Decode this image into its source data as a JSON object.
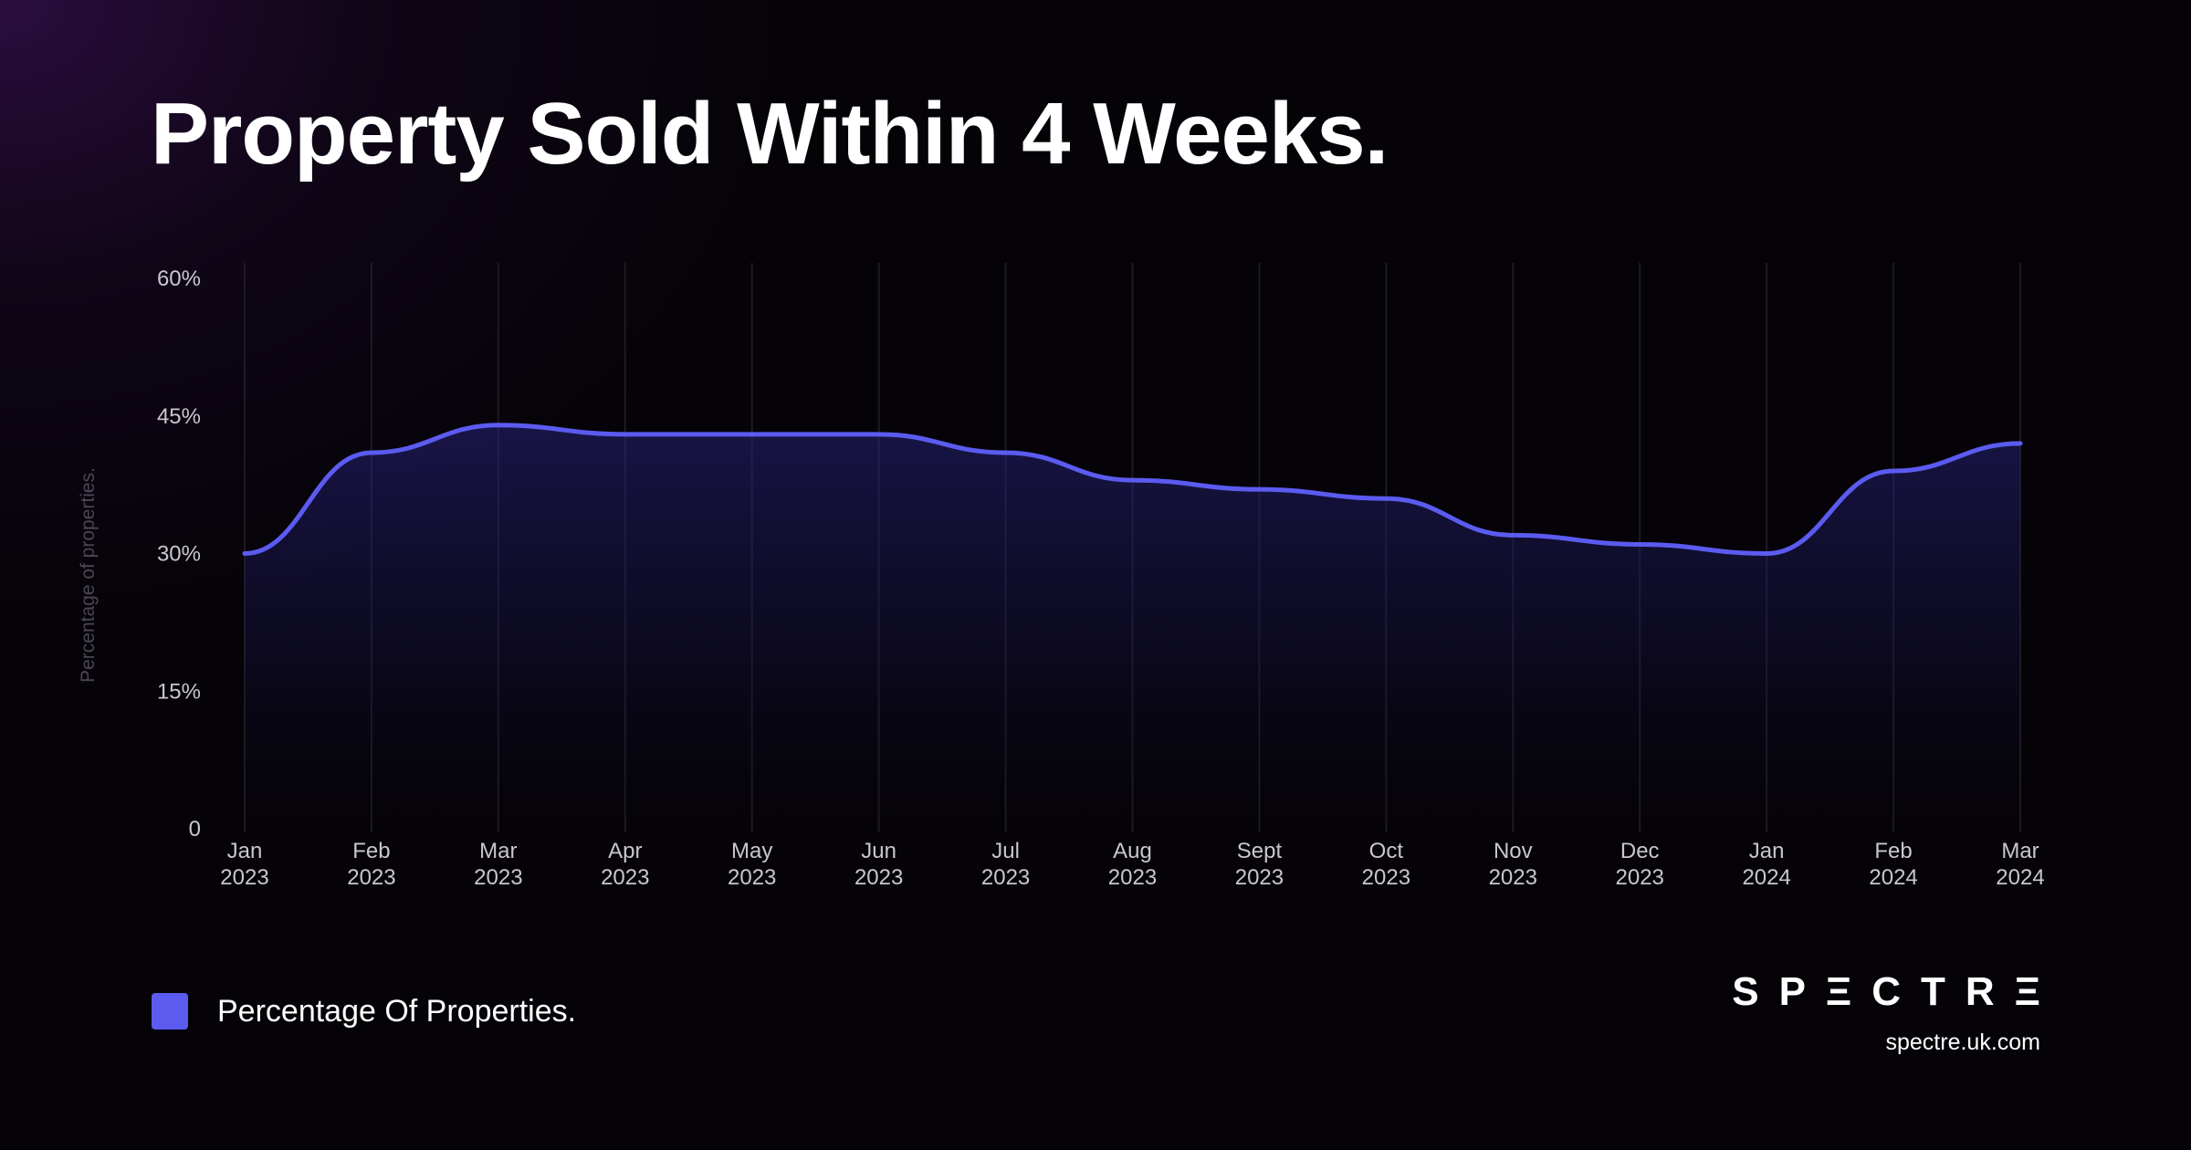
{
  "title": "Property Sold Within 4 Weeks.",
  "legend": {
    "label": "Percentage Of Properties.",
    "color": "#5b5bf0"
  },
  "brand": {
    "logo": "SPΞCTRΞ",
    "url": "spectre.uk.com"
  },
  "chart_data": {
    "type": "area",
    "title": "Property Sold Within 4 Weeks.",
    "ylabel": "Percentage of properties.",
    "xlabel": "",
    "ylim": [
      0,
      60
    ],
    "yticks": [
      {
        "value": 0,
        "label": "0"
      },
      {
        "value": 15,
        "label": "15%"
      },
      {
        "value": 30,
        "label": "30%"
      },
      {
        "value": 45,
        "label": "45%"
      },
      {
        "value": 60,
        "label": "60%"
      }
    ],
    "categories": [
      [
        "Jan",
        "2023"
      ],
      [
        "Feb",
        "2023"
      ],
      [
        "Mar",
        "2023"
      ],
      [
        "Apr",
        "2023"
      ],
      [
        "May",
        "2023"
      ],
      [
        "Jun",
        "2023"
      ],
      [
        "Jul",
        "2023"
      ],
      [
        "Aug",
        "2023"
      ],
      [
        "Sept",
        "2023"
      ],
      [
        "Oct",
        "2023"
      ],
      [
        "Nov",
        "2023"
      ],
      [
        "Dec",
        "2023"
      ],
      [
        "Jan",
        "2024"
      ],
      [
        "Feb",
        "2024"
      ],
      [
        "Mar",
        "2024"
      ]
    ],
    "series": [
      {
        "name": "Percentage Of Properties.",
        "color": "#5b5bf0",
        "values": [
          30,
          41,
          44,
          43,
          43,
          43,
          41,
          38,
          37,
          36,
          32,
          31,
          30,
          39,
          42
        ]
      }
    ],
    "grid": "vertical",
    "legend_position": "bottom-left"
  }
}
